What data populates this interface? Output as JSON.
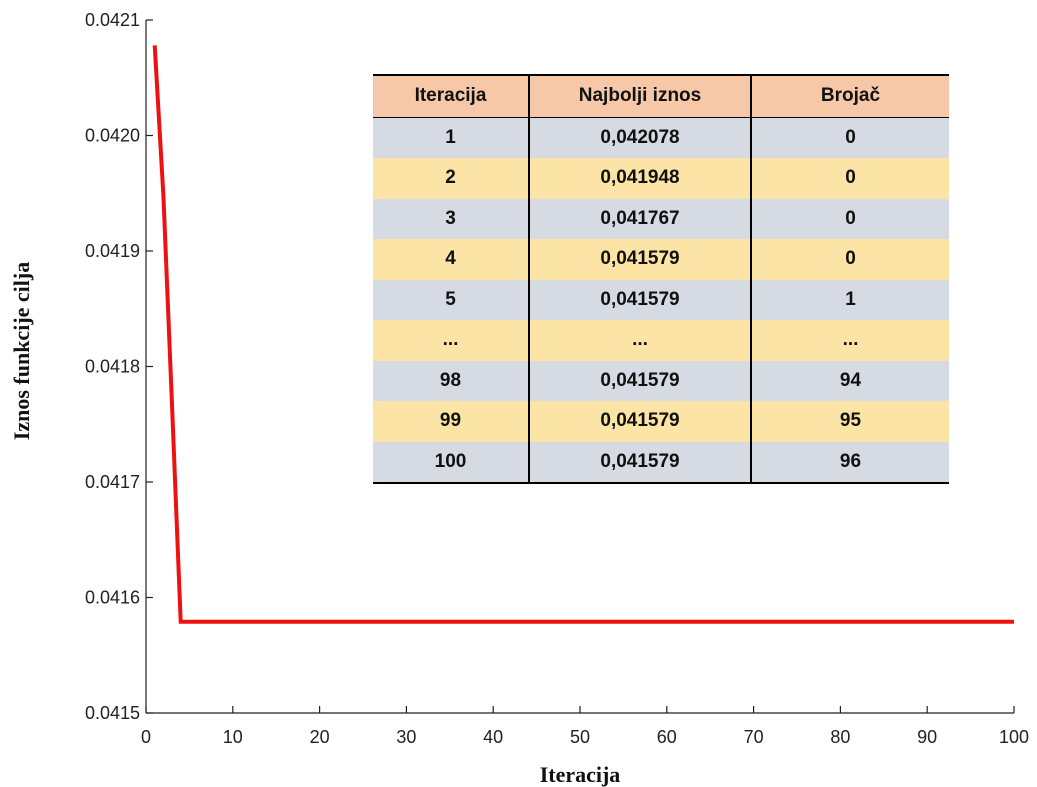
{
  "chart_data": {
    "type": "line",
    "title": "",
    "xlabel": "Iteracija",
    "ylabel": "Iznos funkcije cilja",
    "xlim": [
      0,
      100
    ],
    "ylim": [
      0.0415,
      0.0421
    ],
    "x_ticks": [
      "0",
      "10",
      "20",
      "30",
      "40",
      "50",
      "60",
      "70",
      "80",
      "90",
      "100"
    ],
    "y_ticks": [
      "0.0415",
      "0.0416",
      "0.0417",
      "0.0418",
      "0.0419",
      "0.0420",
      "0.0421"
    ],
    "grid": false,
    "line_color": "#ee1111",
    "series": [
      {
        "x": [
          1,
          2,
          3,
          4,
          5,
          10,
          20,
          30,
          40,
          50,
          60,
          70,
          80,
          90,
          98,
          99,
          100
        ],
        "y": [
          0.042078,
          0.041948,
          0.041767,
          0.041579,
          0.041579,
          0.041579,
          0.041579,
          0.041579,
          0.041579,
          0.041579,
          0.041579,
          0.041579,
          0.041579,
          0.041579,
          0.041579,
          0.041579,
          0.041579
        ]
      }
    ]
  },
  "table": {
    "headers": [
      "Iteracija",
      "Najbolji iznos",
      "Brojač"
    ],
    "header_color": "#f7c8a7",
    "row_colors": [
      "#d6dbe3",
      "#fce4a6"
    ],
    "rows": [
      [
        "1",
        "0,042078",
        "0"
      ],
      [
        "2",
        "0,041948",
        "0"
      ],
      [
        "3",
        "0,041767",
        "0"
      ],
      [
        "4",
        "0,041579",
        "0"
      ],
      [
        "5",
        "0,041579",
        "1"
      ],
      [
        "...",
        "...",
        "..."
      ],
      [
        "98",
        "0,041579",
        "94"
      ],
      [
        "99",
        "0,041579",
        "95"
      ],
      [
        "100",
        "0,041579",
        "96"
      ]
    ]
  }
}
